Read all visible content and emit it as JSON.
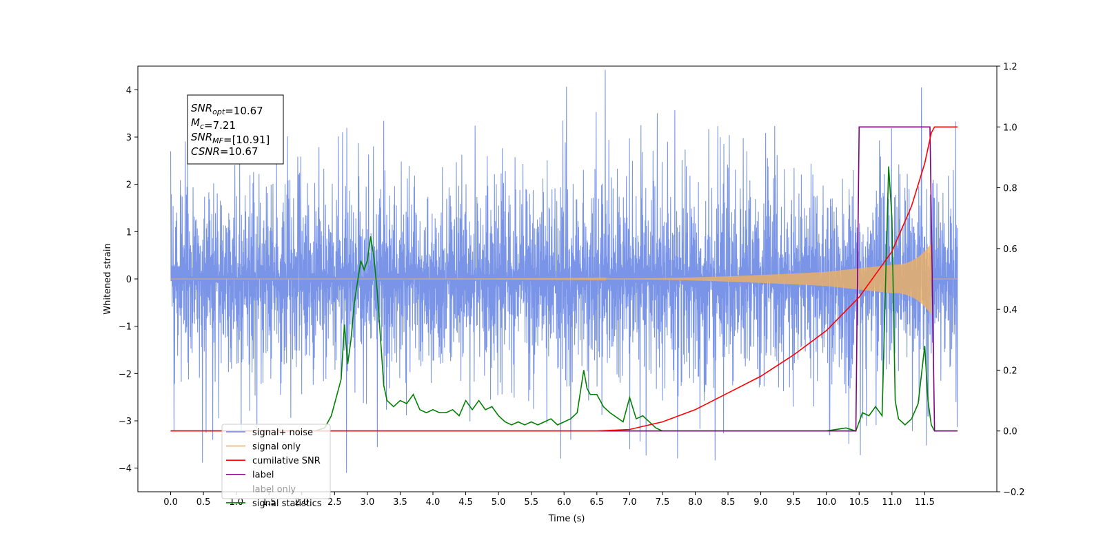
{
  "chart_data": {
    "type": "line",
    "title": "",
    "xlabel": "Time (s)",
    "ylabel": "Whitened strain",
    "y2label": "",
    "xlim": [
      -0.5,
      12.6
    ],
    "ylim": [
      -4.5,
      4.5
    ],
    "y2lim": [
      -0.2,
      1.2
    ],
    "xticks": [
      0.0,
      0.5,
      1.0,
      1.5,
      2.0,
      2.5,
      3.0,
      3.5,
      4.0,
      4.5,
      5.0,
      5.5,
      6.0,
      6.5,
      7.0,
      7.5,
      8.0,
      8.5,
      9.0,
      9.5,
      10.0,
      10.5,
      11.0,
      11.5
    ],
    "xtick_labels": [
      "0.0",
      "0.5",
      "1.0",
      "1.5",
      "2.0",
      "2.5",
      "3.0",
      "3.5",
      "4.0",
      "4.5",
      "5.0",
      "5.5",
      "6.0",
      "6.5",
      "7.0",
      "7.5",
      "8.0",
      "8.5",
      "9.0",
      "9.5",
      "10.0",
      "10.5",
      "11.0",
      "11.5"
    ],
    "yticks": [
      4,
      3,
      2,
      1,
      0,
      -1,
      -2,
      -3,
      -4
    ],
    "ytick_labels": [
      "4",
      "3",
      "2",
      "1",
      "0",
      "−1",
      "−2",
      "−3",
      "−4"
    ],
    "y2ticks": [
      1.2,
      1.0,
      0.8,
      0.6,
      0.4,
      0.2,
      0.0,
      -0.2
    ],
    "y2tick_labels": [
      "1.2",
      "1.0",
      "0.8",
      "0.6",
      "0.4",
      "0.2",
      "0.0",
      "−0.2"
    ],
    "grid": false,
    "legend_position": "lower-left",
    "series": [
      {
        "name": "signal+ noise",
        "axis": "left",
        "color": "#6b8ae6",
        "description_type": "noise",
        "t_range": [
          0.0,
          12.0
        ],
        "envelope": 1.5,
        "peaks": [
          [
            0.0,
            2.7
          ],
          [
            0.05,
            -3.2
          ],
          [
            2.62,
            3.1
          ],
          [
            2.68,
            -4.1
          ],
          [
            1.95,
            2.2
          ],
          [
            5.98,
            3.35
          ],
          [
            5.95,
            -3.8
          ],
          [
            6.1,
            -3.4
          ],
          [
            7.0,
            -3.6
          ],
          [
            7.58,
            2.9
          ],
          [
            11.45,
            4.05
          ],
          [
            11.55,
            -2.9
          ],
          [
            10.05,
            -3.3
          ]
        ]
      },
      {
        "name": "signal only",
        "axis": "left",
        "color": "#f0b060",
        "description_type": "chirp",
        "t_range": [
          0.0,
          12.0
        ],
        "t_merger": 11.6,
        "amp_at_7": 0.01,
        "amp_at_10": 0.15,
        "amp_at_11": 0.3,
        "amp_peak": 0.75
      },
      {
        "name": "cumilative SNR",
        "axis": "right",
        "color": "#ff0000",
        "x": [
          0.0,
          5.0,
          6.5,
          7.0,
          7.5,
          8.0,
          8.5,
          9.0,
          9.5,
          10.0,
          10.5,
          11.0,
          11.3,
          11.5,
          11.6,
          11.65,
          12.0
        ],
        "values": [
          0.0,
          0.0,
          0.0,
          0.005,
          0.03,
          0.07,
          0.125,
          0.18,
          0.25,
          0.33,
          0.44,
          0.59,
          0.74,
          0.88,
          0.98,
          1.0,
          1.0
        ]
      },
      {
        "name": "label",
        "axis": "right",
        "color": "#800080",
        "x": [
          0.0,
          10.45,
          10.5,
          11.58,
          11.65,
          12.0
        ],
        "values": [
          0.0,
          0.0,
          1.0,
          1.0,
          0.0,
          0.0
        ]
      },
      {
        "name": "label only",
        "axis": "right",
        "color": "#800080",
        "legend_only": true
      },
      {
        "name": "signal statistics",
        "axis": "right",
        "color": "#008000",
        "x": [
          0.0,
          2.2,
          2.35,
          2.45,
          2.55,
          2.6,
          2.65,
          2.7,
          2.75,
          2.8,
          2.9,
          2.95,
          3.0,
          3.05,
          3.1,
          3.15,
          3.25,
          3.3,
          3.4,
          3.5,
          3.6,
          3.7,
          3.8,
          3.9,
          4.0,
          4.1,
          4.2,
          4.3,
          4.4,
          4.5,
          4.6,
          4.7,
          4.8,
          4.9,
          5.0,
          5.1,
          5.2,
          5.3,
          5.4,
          5.5,
          5.6,
          5.7,
          5.8,
          5.9,
          6.0,
          6.1,
          6.2,
          6.3,
          6.35,
          6.4,
          6.5,
          6.6,
          6.7,
          6.9,
          7.0,
          7.1,
          7.2,
          7.3,
          7.4,
          7.5,
          7.7,
          8.0,
          9.0,
          10.0,
          10.3,
          10.45,
          10.55,
          10.65,
          10.75,
          10.85,
          10.95,
          11.0,
          11.05,
          11.1,
          11.2,
          11.3,
          11.4,
          11.5,
          11.55,
          11.6,
          11.65,
          12.0
        ],
        "values": [
          0.0,
          0.0,
          0.01,
          0.05,
          0.13,
          0.17,
          0.35,
          0.22,
          0.3,
          0.42,
          0.56,
          0.53,
          0.56,
          0.64,
          0.57,
          0.46,
          0.15,
          0.1,
          0.08,
          0.1,
          0.09,
          0.12,
          0.07,
          0.06,
          0.07,
          0.06,
          0.06,
          0.07,
          0.05,
          0.1,
          0.07,
          0.1,
          0.07,
          0.08,
          0.05,
          0.03,
          0.02,
          0.03,
          0.02,
          0.03,
          0.02,
          0.03,
          0.04,
          0.02,
          0.03,
          0.04,
          0.06,
          0.2,
          0.14,
          0.12,
          0.12,
          0.08,
          0.06,
          0.03,
          0.11,
          0.04,
          0.05,
          0.03,
          0.01,
          0.0,
          0.0,
          0.0,
          0.0,
          0.0,
          0.01,
          0.0,
          0.06,
          0.05,
          0.08,
          0.05,
          0.87,
          0.7,
          0.1,
          0.04,
          0.02,
          0.04,
          0.09,
          0.28,
          0.1,
          0.02,
          0.0,
          0.0
        ]
      }
    ],
    "annotations": [
      {
        "text_parts": [
          [
            "SNR",
            ""
          ],
          [
            "opt",
            "sub"
          ],
          [
            "=10.67",
            ""
          ]
        ]
      },
      {
        "text_parts": [
          [
            "M",
            ""
          ],
          [
            "c",
            "sub"
          ],
          [
            "=7.21",
            ""
          ]
        ]
      },
      {
        "text_parts": [
          [
            "SNR",
            ""
          ],
          [
            "MF",
            "sub"
          ],
          [
            "=[10.91]",
            ""
          ]
        ]
      },
      {
        "text_parts": [
          [
            "CSNR",
            ""
          ],
          [
            "=10.67",
            ""
          ]
        ]
      }
    ]
  }
}
